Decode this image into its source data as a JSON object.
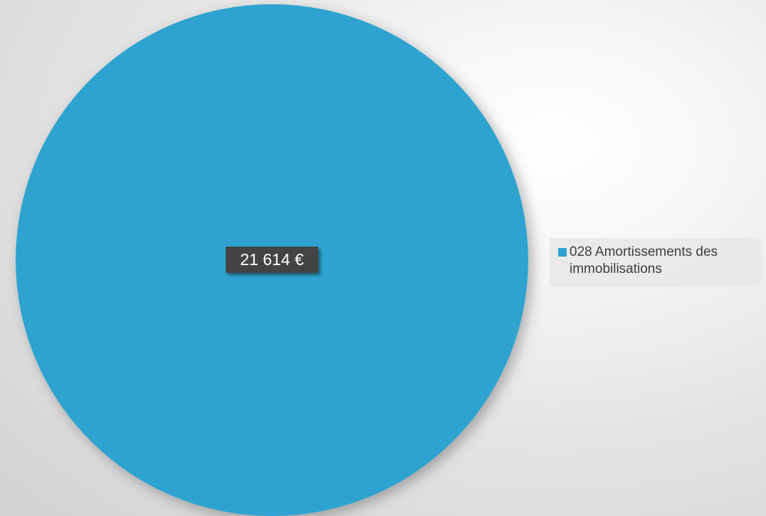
{
  "chart_data": {
    "type": "pie",
    "categories": [
      "028 Amortissements des immobilisations"
    ],
    "values": [
      21614
    ],
    "data_labels": [
      "21 614 €"
    ],
    "unit": "€",
    "colors": [
      "#2ea3d0"
    ],
    "legend_placement": "right"
  },
  "legend": {
    "items": [
      {
        "label": "028 Amortissements des immobilisations",
        "color": "#2ea3d0"
      }
    ]
  }
}
